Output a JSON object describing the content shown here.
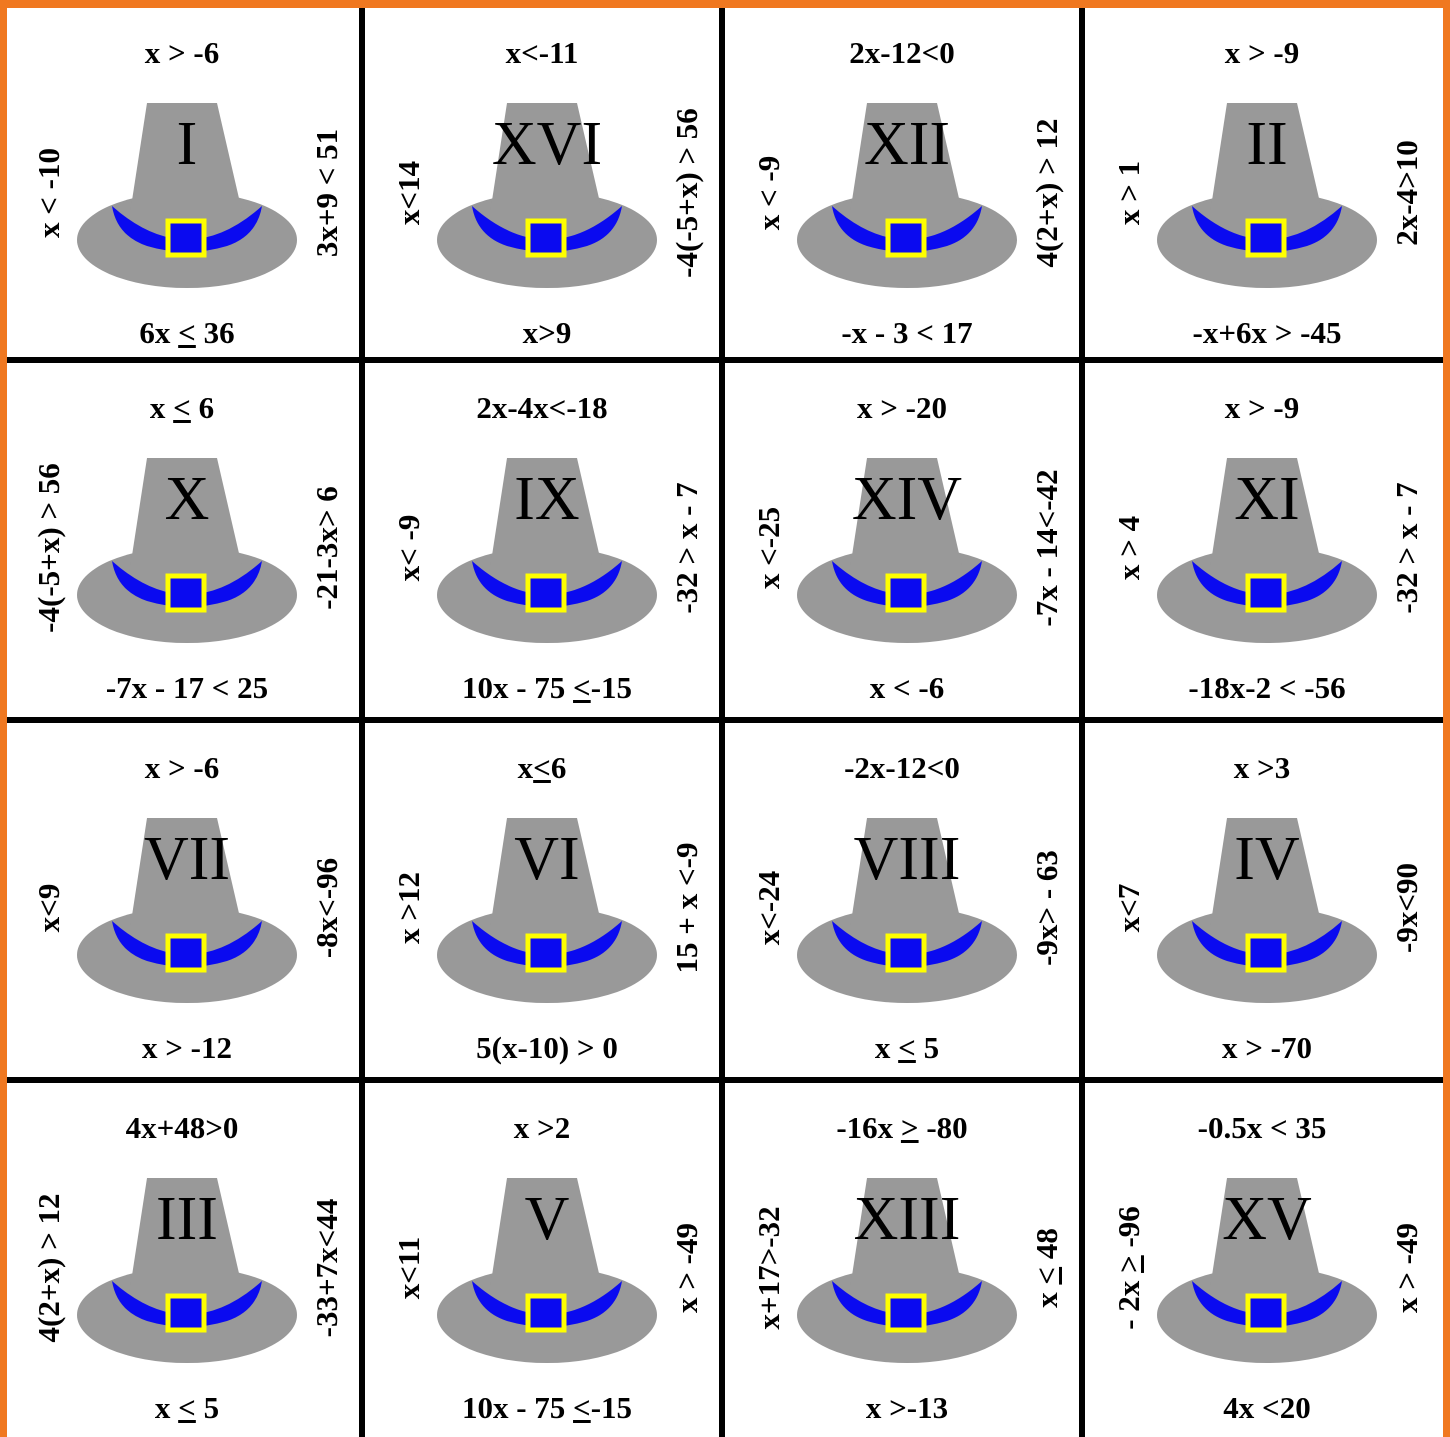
{
  "colors": {
    "border": "#F07820",
    "hat": "#999999",
    "band": "#0A0AF0",
    "buckle": "#FFFF00"
  },
  "icon": "pilgrim-hat-icon",
  "cells": [
    {
      "numeral": "I",
      "top": "x > -6",
      "bottom_pre": "6x ",
      "bottom_u": "<",
      "bottom_post": " 36",
      "left": "x < -10",
      "right": "3x+9 < 51"
    },
    {
      "numeral": "XVI",
      "top": "x<-11",
      "bottom_pre": "x>9",
      "bottom_u": "",
      "bottom_post": "",
      "left": "x<14",
      "right": "-4(-5+x) > 56"
    },
    {
      "numeral": "XII",
      "top": "2x-12<0",
      "bottom_pre": "-x - 3 < 17",
      "bottom_u": "",
      "bottom_post": "",
      "left": "x < -9",
      "right": "4(2+x) > 12"
    },
    {
      "numeral": "II",
      "top": "x > -9",
      "bottom_pre": "-x+6x > -45",
      "bottom_u": "",
      "bottom_post": "",
      "left": "x > 1",
      "right": "2x-4>10"
    },
    {
      "numeral": "X",
      "top_pre": "x ",
      "top_u": "<",
      "top_post": " 6",
      "bottom_pre": "-7x - 17 < 25",
      "bottom_u": "",
      "bottom_post": "",
      "left": "-4(-5+x) > 56",
      "right": "-21-3x> 6"
    },
    {
      "numeral": "IX",
      "top": "2x-4x<-18",
      "bottom_pre": "10x - 75 ",
      "bottom_u": "<",
      "bottom_post": "-15",
      "left": "x< -9",
      "right": "-32 > x - 7"
    },
    {
      "numeral": "XIV",
      "top": "x > -20",
      "bottom_pre": "x < -6",
      "bottom_u": "",
      "bottom_post": "",
      "left": "x <-25",
      "right": "-7x - 14<-42"
    },
    {
      "numeral": "XI",
      "top": "x > -9",
      "bottom_pre": "-18x-2 < -56",
      "bottom_u": "",
      "bottom_post": "",
      "left": "x > 4",
      "right": "-32 > x - 7"
    },
    {
      "numeral": "VII",
      "top": "x > -6",
      "bottom_pre": "x > -12",
      "bottom_u": "",
      "bottom_post": "",
      "left": "x<9",
      "right": "-8x<-96"
    },
    {
      "numeral": "VI",
      "top_pre": "x",
      "top_u": "<",
      "top_post": "6",
      "bottom_pre": "5(x-10) > 0",
      "bottom_u": "",
      "bottom_post": "",
      "left": "x >12",
      "right": "15 + x <-9"
    },
    {
      "numeral": "VIII",
      "top": "-2x-12<0",
      "bottom_pre": "x ",
      "bottom_u": "<",
      "bottom_post": " 5",
      "left": "x<-24",
      "right": "-9x> - 63"
    },
    {
      "numeral": "IV",
      "top": "x >3",
      "bottom_pre": "x > -70",
      "bottom_u": "",
      "bottom_post": "",
      "left": "x<7",
      "right": "-9x<90"
    },
    {
      "numeral": "III",
      "top": "4x+48>0",
      "bottom_pre": "x ",
      "bottom_u": "<",
      "bottom_post": " 5",
      "left": "4(2+x) > 12",
      "right": "-33+7x<44"
    },
    {
      "numeral": "V",
      "top": "x >2",
      "bottom_pre": "10x - 75 ",
      "bottom_u": "<",
      "bottom_post": "-15",
      "left": "x<11",
      "right": "x > -49"
    },
    {
      "numeral": "XIII",
      "top_pre": "-16x ",
      "top_u": ">",
      "top_post": " -80",
      "bottom_pre": "x >-13",
      "bottom_u": "",
      "bottom_post": "",
      "left": "x+17>-32",
      "right_pre": "x ",
      "right_u": "<",
      "right_post": " 48"
    },
    {
      "numeral": "XV",
      "top": "-0.5x < 35",
      "bottom_pre": "4x <20",
      "bottom_u": "",
      "bottom_post": "",
      "left_pre": "- 2x ",
      "left_u": ">",
      "left_post": " -96",
      "right": "x > -49"
    }
  ]
}
